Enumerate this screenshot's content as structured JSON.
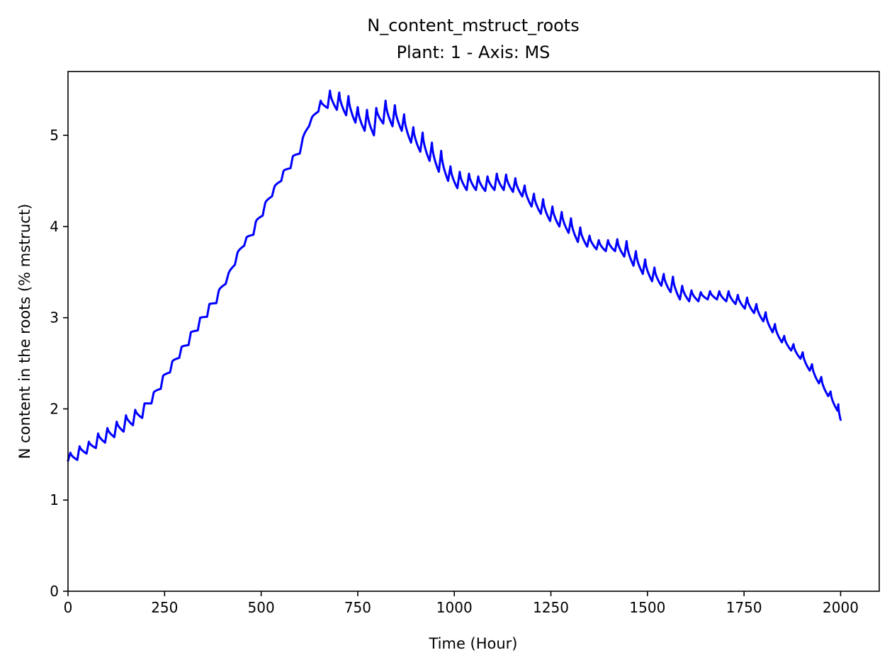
{
  "chart_data": {
    "type": "line",
    "title": "N_content_mstruct_roots",
    "subtitle": "Plant: 1 - Axis: MS",
    "xlabel": "Time (Hour)",
    "ylabel": "N content in the roots (% mstruct)",
    "xlim": [
      0,
      2100
    ],
    "ylim": [
      0,
      5.7
    ],
    "xticks": [
      0,
      250,
      500,
      750,
      1000,
      1250,
      1500,
      1750,
      2000
    ],
    "yticks": [
      0,
      1,
      2,
      3,
      4,
      5
    ],
    "grid": false,
    "series": [
      {
        "color": "#0000ff",
        "x": [
          0,
          24,
          48,
          72,
          96,
          120,
          144,
          168,
          192,
          216,
          240,
          264,
          288,
          312,
          336,
          360,
          384,
          408,
          432,
          456,
          480,
          504,
          528,
          552,
          576,
          600,
          624,
          648,
          672,
          696,
          720,
          744,
          768,
          792,
          816,
          840,
          864,
          888,
          912,
          936,
          960,
          984,
          1008,
          1032,
          1056,
          1080,
          1104,
          1128,
          1152,
          1176,
          1200,
          1224,
          1248,
          1272,
          1296,
          1320,
          1344,
          1368,
          1392,
          1416,
          1440,
          1464,
          1488,
          1512,
          1536,
          1560,
          1584,
          1608,
          1632,
          1656,
          1680,
          1704,
          1728,
          1752,
          1776,
          1800,
          1824,
          1848,
          1872,
          1896,
          1920,
          1944,
          1968,
          1992,
          2000
        ],
        "min": [
          1.43,
          1.44,
          1.51,
          1.57,
          1.63,
          1.69,
          1.75,
          1.82,
          1.9,
          2.06,
          2.22,
          2.4,
          2.56,
          2.7,
          2.86,
          3.01,
          3.16,
          3.37,
          3.58,
          3.79,
          3.91,
          4.12,
          4.33,
          4.5,
          4.64,
          4.8,
          5.1,
          5.26,
          5.3,
          5.28,
          5.22,
          5.14,
          5.05,
          5.0,
          5.13,
          5.1,
          5.05,
          4.92,
          4.82,
          4.72,
          4.6,
          4.5,
          4.42,
          4.4,
          4.4,
          4.39,
          4.4,
          4.4,
          4.38,
          4.33,
          4.22,
          4.14,
          4.06,
          4.0,
          3.93,
          3.83,
          3.78,
          3.75,
          3.73,
          3.73,
          3.67,
          3.57,
          3.48,
          3.4,
          3.35,
          3.28,
          3.2,
          3.18,
          3.18,
          3.2,
          3.2,
          3.18,
          3.15,
          3.1,
          3.05,
          2.96,
          2.84,
          2.73,
          2.64,
          2.55,
          2.42,
          2.28,
          2.14,
          1.98,
          1.88
        ],
        "max": [
          1.52,
          1.59,
          1.64,
          1.73,
          1.79,
          1.86,
          1.93,
          1.99,
          2.06,
          2.18,
          2.36,
          2.52,
          2.68,
          2.84,
          3.0,
          3.15,
          3.29,
          3.46,
          3.7,
          3.88,
          4.05,
          4.25,
          4.43,
          4.61,
          4.77,
          4.93,
          5.18,
          5.38,
          5.49,
          5.47,
          5.43,
          5.31,
          5.28,
          5.3,
          5.38,
          5.33,
          5.23,
          5.09,
          5.03,
          4.92,
          4.83,
          4.66,
          4.6,
          4.58,
          4.55,
          4.55,
          4.58,
          4.57,
          4.53,
          4.45,
          4.36,
          4.3,
          4.22,
          4.16,
          4.09,
          3.99,
          3.9,
          3.85,
          3.85,
          3.86,
          3.84,
          3.73,
          3.64,
          3.55,
          3.48,
          3.45,
          3.35,
          3.3,
          3.28,
          3.29,
          3.29,
          3.29,
          3.25,
          3.22,
          3.15,
          3.06,
          2.93,
          2.8,
          2.71,
          2.62,
          2.49,
          2.35,
          2.19,
          2.05,
          1.9
        ]
      }
    ]
  }
}
